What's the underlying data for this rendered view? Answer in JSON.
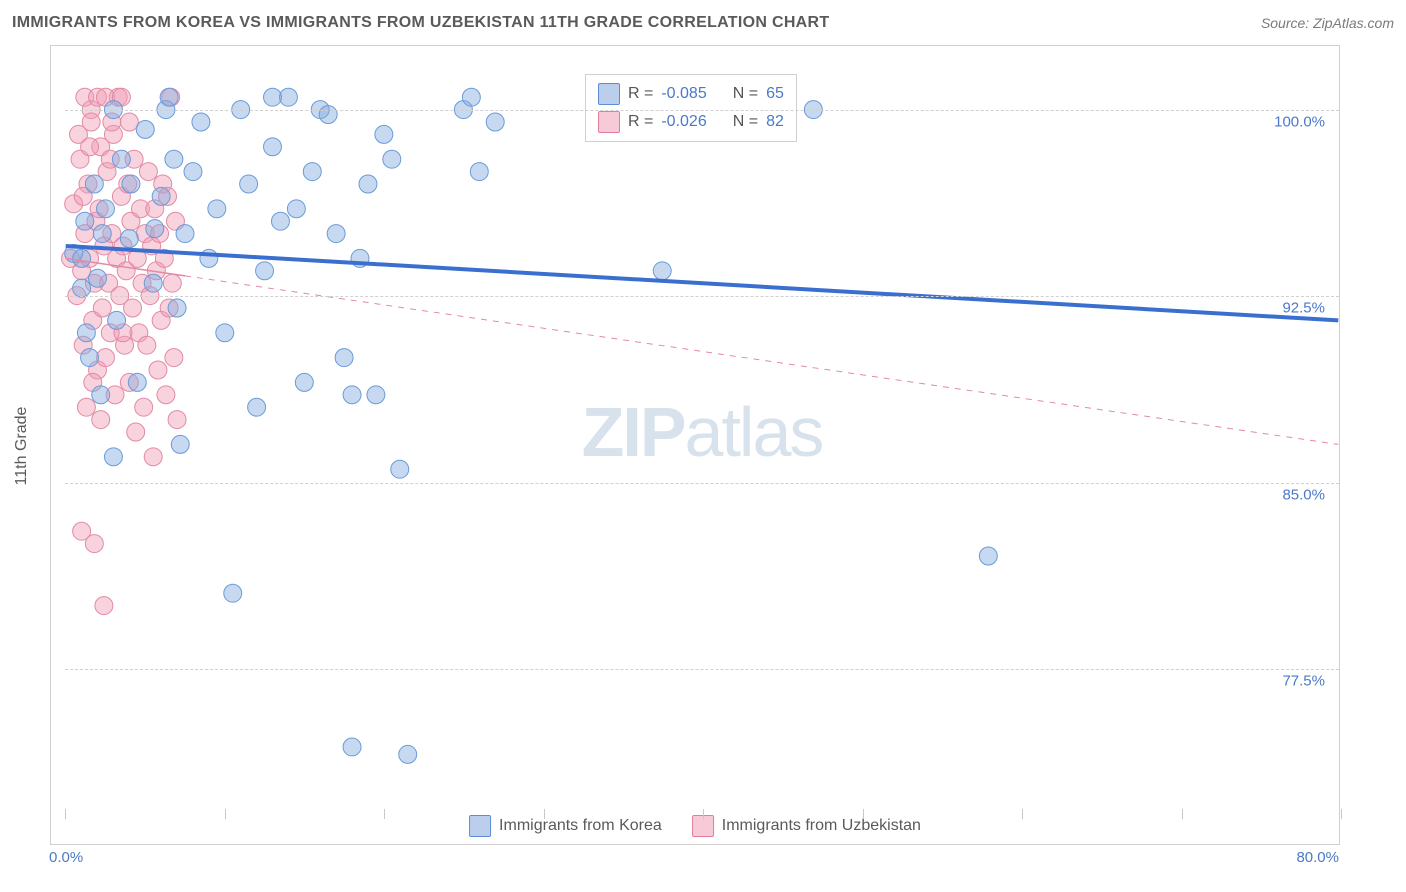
{
  "title": "IMMIGRANTS FROM KOREA VS IMMIGRANTS FROM UZBEKISTAN 11TH GRADE CORRELATION CHART",
  "source": "Source: ZipAtlas.com",
  "watermark_zip": "ZIP",
  "watermark_atlas": "atlas",
  "chart": {
    "type": "scatter",
    "yaxis_title": "11th Grade",
    "xlim": [
      0,
      80
    ],
    "ylim": [
      72,
      102
    ],
    "x_tick_positions": [
      0,
      10,
      20,
      30,
      40,
      50,
      60,
      70,
      80
    ],
    "x_label_min": "0.0%",
    "x_label_max": "80.0%",
    "y_ticks": [
      {
        "v": 77.5,
        "label": "77.5%"
      },
      {
        "v": 85.0,
        "label": "85.0%"
      },
      {
        "v": 92.5,
        "label": "92.5%"
      },
      {
        "v": 100.0,
        "label": "100.0%"
      }
    ],
    "marker_radius": 9,
    "background_color": "#ffffff",
    "grid_color": "#d0d0d0",
    "series": [
      {
        "name": "Immigrants from Korea",
        "color_fill": "rgba(130,170,225,0.45)",
        "color_stroke": "#6a9ad8",
        "class": "pt-blue",
        "r_value": "-0.085",
        "n_value": "65",
        "trend": {
          "x1": 0,
          "y1": 94.5,
          "x2": 80,
          "y2": 91.5,
          "solid": true,
          "dash_from_x": null
        },
        "points": [
          [
            0.5,
            94.2
          ],
          [
            1.0,
            92.8
          ],
          [
            1.2,
            95.5
          ],
          [
            1.5,
            90.0
          ],
          [
            1.8,
            97.0
          ],
          [
            2.0,
            93.2
          ],
          [
            2.2,
            88.5
          ],
          [
            2.5,
            96.0
          ],
          [
            3.0,
            100.0
          ],
          [
            3.2,
            91.5
          ],
          [
            3.5,
            98.0
          ],
          [
            4.0,
            94.8
          ],
          [
            4.5,
            89.0
          ],
          [
            5.0,
            99.2
          ],
          [
            5.5,
            93.0
          ],
          [
            6.0,
            96.5
          ],
          [
            6.3,
            100.0
          ],
          [
            6.8,
            98.0
          ],
          [
            7.0,
            92.0
          ],
          [
            7.5,
            95.0
          ],
          [
            8.0,
            97.5
          ],
          [
            8.5,
            99.5
          ],
          [
            9.0,
            94.0
          ],
          [
            9.5,
            96.0
          ],
          [
            10.0,
            91.0
          ],
          [
            10.5,
            80.5
          ],
          [
            11.0,
            100.0
          ],
          [
            11.5,
            97.0
          ],
          [
            12.0,
            88.0
          ],
          [
            12.5,
            93.5
          ],
          [
            13.0,
            98.5
          ],
          [
            13.5,
            95.5
          ],
          [
            14.0,
            100.5
          ],
          [
            14.5,
            96.0
          ],
          [
            15.0,
            89.0
          ],
          [
            15.5,
            97.5
          ],
          [
            16.0,
            100.0
          ],
          [
            16.5,
            99.8
          ],
          [
            17.0,
            95.0
          ],
          [
            17.5,
            90.0
          ],
          [
            18.0,
            74.3
          ],
          [
            18.5,
            94.0
          ],
          [
            19.0,
            97.0
          ],
          [
            19.5,
            88.5
          ],
          [
            20.0,
            99.0
          ],
          [
            20.5,
            98.0
          ],
          [
            21.0,
            85.5
          ],
          [
            21.5,
            74.0
          ],
          [
            25.0,
            100.0
          ],
          [
            26.0,
            97.5
          ],
          [
            27.0,
            99.5
          ],
          [
            37.5,
            93.5
          ],
          [
            47.0,
            100.0
          ],
          [
            58.0,
            82.0
          ],
          [
            6.5,
            100.5
          ],
          [
            13.0,
            100.5
          ],
          [
            25.5,
            100.5
          ],
          [
            3.0,
            86.0
          ],
          [
            7.2,
            86.5
          ],
          [
            1.0,
            94.0
          ],
          [
            2.3,
            95.0
          ],
          [
            4.1,
            97.0
          ],
          [
            5.6,
            95.2
          ],
          [
            1.3,
            91.0
          ],
          [
            18.0,
            88.5
          ]
        ]
      },
      {
        "name": "Immigrants from Uzbekistan",
        "color_fill": "rgba(240,155,180,0.45)",
        "color_stroke": "#e28aa5",
        "class": "pt-pink",
        "r_value": "-0.026",
        "n_value": "82",
        "trend": {
          "x1": 0,
          "y1": 94.0,
          "x2": 80,
          "y2": 86.5,
          "solid": false,
          "dash_from_x": 7.5
        },
        "points": [
          [
            0.3,
            94.0
          ],
          [
            0.5,
            96.2
          ],
          [
            0.7,
            92.5
          ],
          [
            0.9,
            98.0
          ],
          [
            1.0,
            93.5
          ],
          [
            1.1,
            90.5
          ],
          [
            1.2,
            95.0
          ],
          [
            1.3,
            88.0
          ],
          [
            1.4,
            97.0
          ],
          [
            1.5,
            94.0
          ],
          [
            1.6,
            100.0
          ],
          [
            1.7,
            91.5
          ],
          [
            1.8,
            93.0
          ],
          [
            1.9,
            95.5
          ],
          [
            2.0,
            89.5
          ],
          [
            2.1,
            96.0
          ],
          [
            2.2,
            98.5
          ],
          [
            2.3,
            92.0
          ],
          [
            2.4,
            94.5
          ],
          [
            2.5,
            90.0
          ],
          [
            2.6,
            97.5
          ],
          [
            2.7,
            93.0
          ],
          [
            2.8,
            91.0
          ],
          [
            2.9,
            95.0
          ],
          [
            3.0,
            99.0
          ],
          [
            3.1,
            88.5
          ],
          [
            3.2,
            94.0
          ],
          [
            3.3,
            100.5
          ],
          [
            3.4,
            92.5
          ],
          [
            3.5,
            96.5
          ],
          [
            3.6,
            94.5
          ],
          [
            3.7,
            90.5
          ],
          [
            3.8,
            93.5
          ],
          [
            3.9,
            97.0
          ],
          [
            4.0,
            89.0
          ],
          [
            4.1,
            95.5
          ],
          [
            4.2,
            92.0
          ],
          [
            4.3,
            98.0
          ],
          [
            4.4,
            87.0
          ],
          [
            4.5,
            94.0
          ],
          [
            4.6,
            91.0
          ],
          [
            4.7,
            96.0
          ],
          [
            4.8,
            93.0
          ],
          [
            4.9,
            88.0
          ],
          [
            5.0,
            95.0
          ],
          [
            5.1,
            90.5
          ],
          [
            5.2,
            97.5
          ],
          [
            5.3,
            92.5
          ],
          [
            5.4,
            94.5
          ],
          [
            5.5,
            86.0
          ],
          [
            5.6,
            96.0
          ],
          [
            5.7,
            93.5
          ],
          [
            5.8,
            89.5
          ],
          [
            5.9,
            95.0
          ],
          [
            6.0,
            91.5
          ],
          [
            6.1,
            97.0
          ],
          [
            6.2,
            94.0
          ],
          [
            6.3,
            88.5
          ],
          [
            6.4,
            96.5
          ],
          [
            6.5,
            92.0
          ],
          [
            6.6,
            100.5
          ],
          [
            6.7,
            93.0
          ],
          [
            6.8,
            90.0
          ],
          [
            6.9,
            95.5
          ],
          [
            7.0,
            87.5
          ],
          [
            1.0,
            83.0
          ],
          [
            1.8,
            82.5
          ],
          [
            2.4,
            80.0
          ],
          [
            1.2,
            100.5
          ],
          [
            1.6,
            99.5
          ],
          [
            2.0,
            100.5
          ],
          [
            2.5,
            100.5
          ],
          [
            0.8,
            99.0
          ],
          [
            1.5,
            98.5
          ],
          [
            2.8,
            98.0
          ],
          [
            3.5,
            100.5
          ],
          [
            4.0,
            99.5
          ],
          [
            1.1,
            96.5
          ],
          [
            1.7,
            89.0
          ],
          [
            2.2,
            87.5
          ],
          [
            2.9,
            99.5
          ],
          [
            3.6,
            91.0
          ]
        ]
      }
    ]
  },
  "legend_top": {
    "rows": [
      {
        "swatch_class": "blue",
        "r_label": "R =",
        "r_value": "-0.085",
        "n_label": "N =",
        "n_value": "65"
      },
      {
        "swatch_class": "pink",
        "r_label": "R =",
        "r_value": "-0.026",
        "n_label": "N =",
        "n_value": "82"
      }
    ]
  },
  "legend_bottom": [
    {
      "swatch_class": "blue",
      "label": "Immigrants from Korea"
    },
    {
      "swatch_class": "pink",
      "label": "Immigrants from Uzbekistan"
    }
  ]
}
